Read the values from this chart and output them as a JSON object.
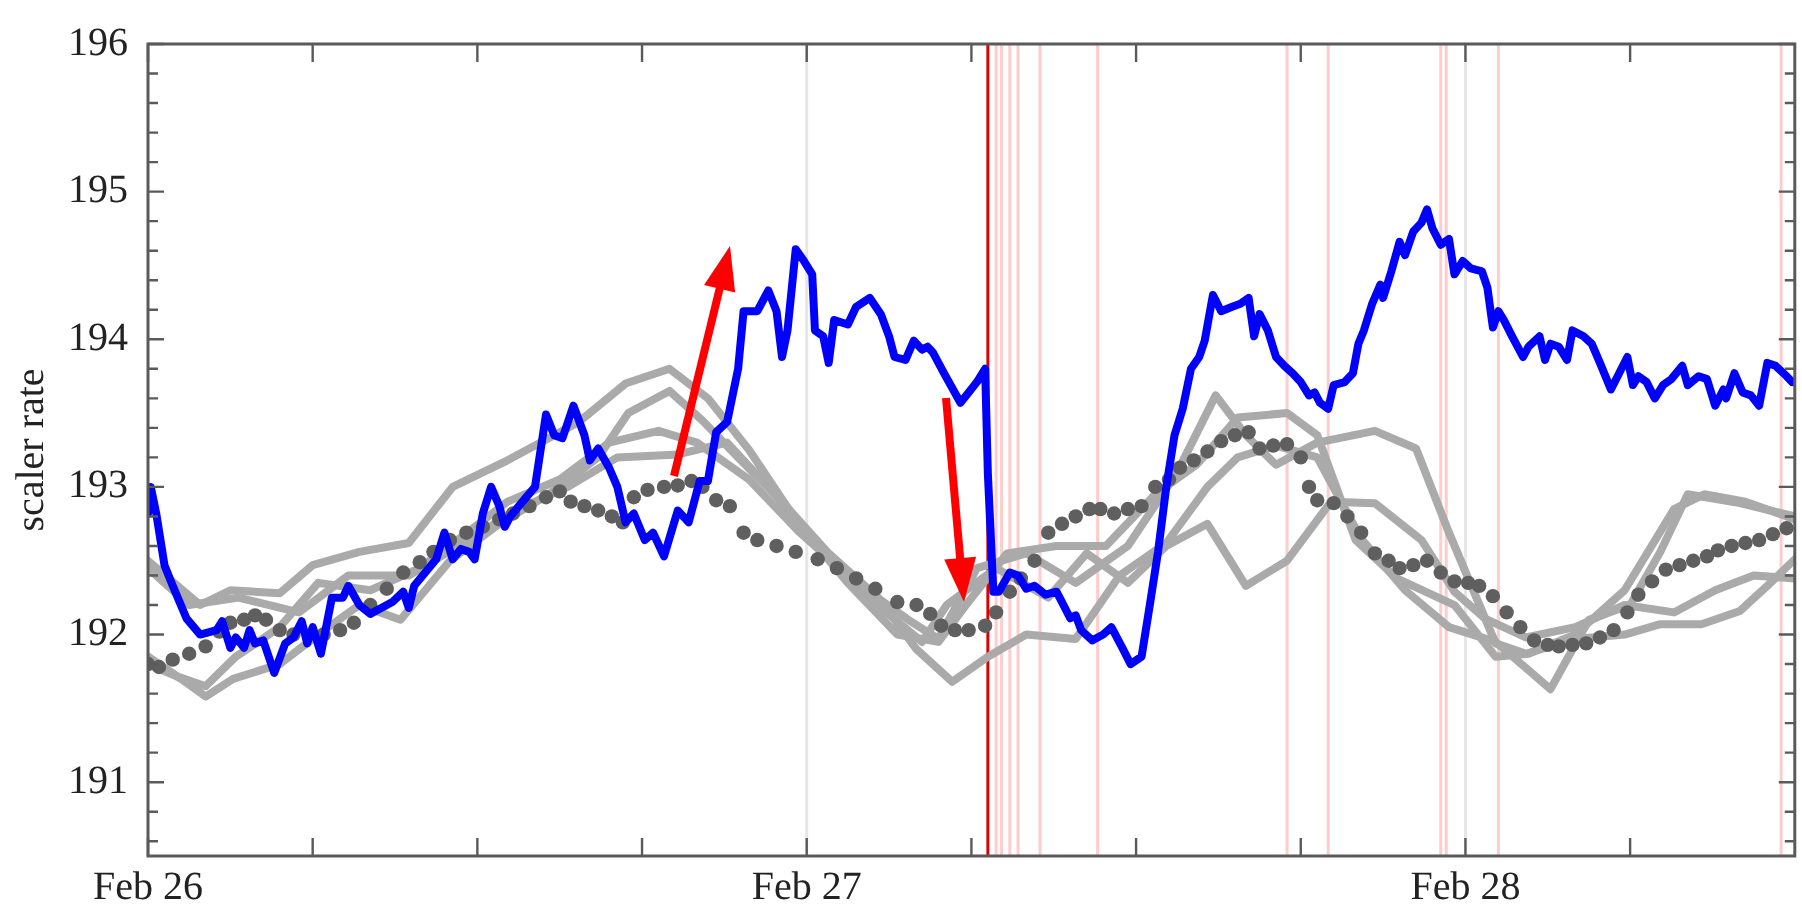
{
  "chart_data": {
    "type": "line",
    "ylabel": "scaler rate",
    "xlim": [
      "--02-26",
      "--02-28T12:00"
    ],
    "xticks": [
      {
        "value": "--02-26",
        "label": "Feb 26"
      },
      {
        "value": "--02-26T06:00",
        "label": null
      },
      {
        "value": "--02-26T12:00",
        "label": null
      },
      {
        "value": "--02-26T18:00",
        "label": null
      },
      {
        "value": "--02-27",
        "label": "Feb 27"
      },
      {
        "value": "--02-27T06:00",
        "label": null
      },
      {
        "value": "--02-27T12:00",
        "label": null
      },
      {
        "value": "--02-27T18:00",
        "label": null
      },
      {
        "value": "--02-28",
        "label": "Feb 28"
      },
      {
        "value": "--02-28T06:00",
        "label": null
      }
    ],
    "ylim": [
      190.5,
      196
    ],
    "yticks": [
      {
        "value": 190.6,
        "label": null
      },
      {
        "value": 190.8,
        "label": null
      },
      191,
      {
        "value": 191.2,
        "label": null
      },
      {
        "value": 191.4,
        "label": null
      },
      {
        "value": 191.6,
        "label": null
      },
      {
        "value": 191.8,
        "label": null
      },
      192,
      {
        "value": 192.2,
        "label": null
      },
      {
        "value": 192.4,
        "label": null
      },
      {
        "value": 192.6,
        "label": null
      },
      {
        "value": 192.8,
        "label": null
      },
      193,
      {
        "value": 193.2,
        "label": null
      },
      {
        "value": 193.4,
        "label": null
      },
      {
        "value": 193.6,
        "label": null
      },
      {
        "value": 193.8,
        "label": null
      },
      194,
      {
        "value": 194.2,
        "label": null
      },
      {
        "value": 194.4,
        "label": null
      },
      {
        "value": 194.6,
        "label": null
      },
      {
        "value": 194.8,
        "label": null
      },
      195,
      {
        "value": 195.2,
        "label": null
      },
      {
        "value": 195.4,
        "label": null
      },
      {
        "value": 195.6,
        "label": null
      },
      {
        "value": 195.8,
        "label": null
      },
      196
    ],
    "series": [
      {
        "color": "#0000ff",
        "x": [
          "--02-26T00:00",
          "--02-26T00:06",
          "--02-26T00:18",
          "--02-26T00:36",
          "--02-26T00:54",
          "--02-26T01:24",
          "--02-26T01:54",
          "--02-26T02:30",
          "--02-26T02:42",
          "--02-26T03:00",
          "--02-26T03:12",
          "--02-26T03:30",
          "--02-26T03:42",
          "--02-26T03:54",
          "--02-26T04:12",
          "--02-26T04:36",
          "--02-26T05:00",
          "--02-26T05:18",
          "--02-26T05:36",
          "--02-26T05:48",
          "--02-26T06:00",
          "--02-26T06:18",
          "--02-26T06:42",
          "--02-26T07:06",
          "--02-26T07:18",
          "--02-26T07:42",
          "--02-26T08:06",
          "--02-26T08:30",
          "--02-26T08:54",
          "--02-26T09:18",
          "--02-26T09:30",
          "--02-26T09:42",
          "--02-26T10:06",
          "--02-26T10:30",
          "--02-26T10:48",
          "--02-26T11:06",
          "--02-26T11:24",
          "--02-26T11:42",
          "--02-26T11:54",
          "--02-26T12:12",
          "--02-26T12:30",
          "--02-26T12:48",
          "--02-26T13:00",
          "--02-26T13:12",
          "--02-26T13:36",
          "--02-26T14:06",
          "--02-26T14:30",
          "--02-26T14:48",
          "--02-26T15:06",
          "--02-26T15:30",
          "--02-26T15:54",
          "--02-26T16:06",
          "--02-26T16:24",
          "--02-26T16:48",
          "--02-26T17:06",
          "--02-26T17:24",
          "--02-26T17:42",
          "--02-26T18:06",
          "--02-26T18:24",
          "--02-26T18:48",
          "--02-26T19:18",
          "--02-26T19:42",
          "--02-26T20:06",
          "--02-26T20:24",
          "--02-26T20:42",
          "--02-26T21:06",
          "--02-26T21:30",
          "--02-26T21:42",
          "--02-26T22:12",
          "--02-26T22:36",
          "--02-26T22:54",
          "--02-26T23:06",
          "--02-26T23:18",
          "--02-26T23:36",
          "--02-26T23:54",
          "--02-27T00:12",
          "--02-27T00:18",
          "--02-27T00:36",
          "--02-27T00:48",
          "--02-27T01:00",
          "--02-27T01:30",
          "--02-27T01:48",
          "--02-27T02:18",
          "--02-27T02:42",
          "--02-27T03:00",
          "--02-27T03:12",
          "--02-27T03:36",
          "--02-27T03:54",
          "--02-27T04:12",
          "--02-27T04:24",
          "--02-27T04:36",
          "--02-27T05:00",
          "--02-27T05:36",
          "--02-27T05:54",
          "--02-27T06:12",
          "--02-27T06:30",
          "--02-27T06:36",
          "--02-27T06:48",
          "--02-27T07:00",
          "--02-27T07:24",
          "--02-27T07:42",
          "--02-27T08:00",
          "--02-27T08:18",
          "--02-27T08:42",
          "--02-27T09:06",
          "--02-27T09:18",
          "--02-27T09:36",
          "--02-27T09:48",
          "--02-27T10:00",
          "--02-27T10:24",
          "--02-27T10:48",
          "--02-27T11:06",
          "--02-27T11:30",
          "--02-27T11:48",
          "--02-27T12:12",
          "--02-27T12:30",
          "--02-27T12:48",
          "--02-27T13:06",
          "--02-27T13:24",
          "--02-27T13:42",
          "--02-27T14:00",
          "--02-27T14:18",
          "--02-27T14:30",
          "--02-27T14:48",
          "--02-27T15:06",
          "--02-27T15:30",
          "--02-27T15:48",
          "--02-27T16:06",
          "--02-27T16:18",
          "--02-27T16:30",
          "--02-27T16:48",
          "--02-27T17:06",
          "--02-27T17:24",
          "--02-27T17:42",
          "--02-27T18:00",
          "--02-27T18:18",
          "--02-27T18:30",
          "--02-27T18:42",
          "--02-27T19:00",
          "--02-27T19:12",
          "--02-27T19:36",
          "--02-27T19:54",
          "--02-27T20:06",
          "--02-27T20:18",
          "--02-27T20:36",
          "--02-27T20:54",
          "--02-27T21:00",
          "--02-27T21:18",
          "--02-27T21:36",
          "--02-27T21:48",
          "--02-27T22:06",
          "--02-27T22:24",
          "--02-27T22:36",
          "--02-27T22:48",
          "--02-27T23:06",
          "--02-27T23:24",
          "--02-27T23:36",
          "--02-27T23:54",
          "--02-28T00:12",
          "--02-28T00:36",
          "--02-28T00:48",
          "--02-28T01:00",
          "--02-28T01:12",
          "--02-28T01:24",
          "--02-28T01:42",
          "--02-28T02:06",
          "--02-28T02:18",
          "--02-28T02:42",
          "--02-28T02:54",
          "--02-28T03:06",
          "--02-28T03:24",
          "--02-28T03:42",
          "--02-28T03:54",
          "--02-28T04:18",
          "--02-28T04:36",
          "--02-28T04:54",
          "--02-28T05:18",
          "--02-28T05:36",
          "--02-28T05:54",
          "--02-28T06:06",
          "--02-28T06:18",
          "--02-28T06:36",
          "--02-28T06:54",
          "--02-28T07:12",
          "--02-28T07:30",
          "--02-28T07:54",
          "--02-28T08:06",
          "--02-28T08:30",
          "--02-28T08:48",
          "--02-28T09:06",
          "--02-28T09:24",
          "--02-28T09:30",
          "--02-28T09:48",
          "--02-28T10:06",
          "--02-28T10:24",
          "--02-28T10:42",
          "--02-28T11:00",
          "--02-28T11:18",
          "--02-28T11:42",
          "--02-28T11:54"
        ],
        "values": [
          192.82,
          193.0,
          192.82,
          192.47,
          192.33,
          192.11,
          192.0,
          192.03,
          192.09,
          191.91,
          191.98,
          191.91,
          192.03,
          191.94,
          191.96,
          191.74,
          191.94,
          191.98,
          192.09,
          191.94,
          192.05,
          191.87,
          192.25,
          192.25,
          192.33,
          192.2,
          192.14,
          192.18,
          192.22,
          192.29,
          192.18,
          192.33,
          192.42,
          192.51,
          192.69,
          192.51,
          192.58,
          192.56,
          192.51,
          192.82,
          193.0,
          192.87,
          192.73,
          192.8,
          192.89,
          193.0,
          193.49,
          193.35,
          193.33,
          193.55,
          193.35,
          193.18,
          193.26,
          193.13,
          193.0,
          192.76,
          192.82,
          192.64,
          192.69,
          192.53,
          192.84,
          192.76,
          193.04,
          193.04,
          193.37,
          193.44,
          193.8,
          194.19,
          194.19,
          194.33,
          194.19,
          193.88,
          194.06,
          194.61,
          194.53,
          194.44,
          194.06,
          194.02,
          193.84,
          194.13,
          194.1,
          194.22,
          194.28,
          194.17,
          194.02,
          193.88,
          193.86,
          193.99,
          193.93,
          193.95,
          193.91,
          193.77,
          193.57,
          193.64,
          193.71,
          193.8,
          193.09,
          192.29,
          192.29,
          192.42,
          192.4,
          192.31,
          192.33,
          192.27,
          192.29,
          192.22,
          192.11,
          192.13,
          192.03,
          191.96,
          192.0,
          192.05,
          191.91,
          191.8,
          191.85,
          192.2,
          192.56,
          193.0,
          193.35,
          193.53,
          193.8,
          193.88,
          193.99,
          194.3,
          194.19,
          194.22,
          194.24,
          194.28,
          194.02,
          194.17,
          194.06,
          193.88,
          193.82,
          193.77,
          193.71,
          193.62,
          193.64,
          193.57,
          193.53,
          193.69,
          193.71,
          193.77,
          193.97,
          194.06,
          194.24,
          194.37,
          194.28,
          194.46,
          194.66,
          194.57,
          194.73,
          194.79,
          194.88,
          194.75,
          194.64,
          194.68,
          194.44,
          194.53,
          194.48,
          194.46,
          194.35,
          194.08,
          194.19,
          194.13,
          194.02,
          193.88,
          193.95,
          194.02,
          193.86,
          193.97,
          193.95,
          193.86,
          194.06,
          194.02,
          193.97,
          193.84,
          193.66,
          193.77,
          193.88,
          193.69,
          193.75,
          193.71,
          193.6,
          193.69,
          193.73,
          193.82,
          193.69,
          193.75,
          193.73,
          193.55,
          193.66,
          193.6,
          193.77,
          193.64,
          193.62,
          193.55,
          193.84,
          193.82,
          193.75,
          193.71
        ]
      },
      {
        "type": "scatter",
        "marker": "circle",
        "color": "#5f5f5f",
        "x": [
          "--02-26T00:00",
          "--02-26T00:24",
          "--02-26T00:54",
          "--02-26T01:30",
          "--02-26T02:06",
          "--02-26T02:36",
          "--02-26T03:00",
          "--02-26T03:30",
          "--02-26T03:54",
          "--02-26T04:18",
          "--02-26T04:48",
          "--02-26T05:18",
          "--02-26T05:54",
          "--02-26T06:24",
          "--02-26T07:00",
          "--02-26T07:30",
          "--02-26T08:06",
          "--02-26T08:42",
          "--02-26T09:18",
          "--02-26T09:54",
          "--02-26T10:24",
          "--02-26T11:00",
          "--02-26T11:36",
          "--02-26T12:12",
          "--02-26T12:48",
          "--02-26T13:18",
          "--02-26T13:54",
          "--02-26T14:30",
          "--02-26T15:00",
          "--02-26T15:24",
          "--02-26T15:54",
          "--02-26T16:24",
          "--02-26T16:54",
          "--02-26T17:18",
          "--02-26T17:42",
          "--02-26T18:12",
          "--02-26T18:48",
          "--02-26T19:18",
          "--02-26T19:48",
          "--02-26T20:12",
          "--02-26T20:42",
          "--02-26T21:12",
          "--02-26T21:42",
          "--02-26T22:12",
          "--02-26T22:54",
          "--02-26T23:36",
          "--02-27T00:24",
          "--02-27T01:06",
          "--02-27T01:48",
          "--02-27T02:30",
          "--02-27T03:18",
          "--02-27T04:00",
          "--02-27T04:30",
          "--02-27T04:54",
          "--02-27T05:24",
          "--02-27T05:54",
          "--02-27T06:30",
          "--02-27T06:54",
          "--02-27T07:24",
          "--02-27T07:48",
          "--02-27T08:18",
          "--02-27T08:48",
          "--02-27T09:18",
          "--02-27T09:48",
          "--02-27T10:18",
          "--02-27T10:42",
          "--02-27T11:12",
          "--02-27T11:42",
          "--02-27T12:12",
          "--02-27T12:42",
          "--02-27T13:12",
          "--02-27T13:36",
          "--02-27T14:06",
          "--02-27T14:36",
          "--02-27T15:06",
          "--02-27T15:36",
          "--02-27T16:06",
          "--02-27T16:30",
          "--02-27T17:00",
          "--02-27T17:30",
          "--02-27T18:00",
          "--02-27T18:18",
          "--02-27T18:36",
          "--02-27T19:12",
          "--02-27T19:42",
          "--02-27T20:12",
          "--02-27T20:42",
          "--02-27T21:12",
          "--02-27T21:36",
          "--02-27T22:06",
          "--02-27T22:36",
          "--02-27T23:06",
          "--02-27T23:36",
          "--02-28T00:06",
          "--02-28T00:30",
          "--02-28T01:00",
          "--02-28T01:30",
          "--02-28T02:00",
          "--02-28T02:30",
          "--02-28T03:00",
          "--02-28T03:24",
          "--02-28T03:54",
          "--02-28T04:24",
          "--02-28T04:54",
          "--02-28T05:24",
          "--02-28T05:54",
          "--02-28T06:18",
          "--02-28T06:48",
          "--02-28T07:18",
          "--02-28T07:48",
          "--02-28T08:18",
          "--02-28T08:48",
          "--02-28T09:12",
          "--02-28T09:42",
          "--02-28T10:12",
          "--02-28T10:42",
          "--02-28T11:12",
          "--02-28T11:42"
        ],
        "values": [
          191.8,
          191.78,
          191.83,
          191.87,
          191.92,
          192.02,
          192.08,
          192.1,
          192.13,
          192.1,
          192.03,
          192.0,
          null,
          192.0,
          192.03,
          192.08,
          192.2,
          192.31,
          192.42,
          192.49,
          192.56,
          192.64,
          192.69,
          192.73,
          192.78,
          192.82,
          192.87,
          192.93,
          192.97,
          192.9,
          192.87,
          192.84,
          192.8,
          192.76,
          192.93,
          192.98,
          193.0,
          193.01,
          193.04,
          193.0,
          192.91,
          192.87,
          192.69,
          192.64,
          192.6,
          192.56,
          192.51,
          192.45,
          192.38,
          192.31,
          192.22,
          192.2,
          192.14,
          192.06,
          192.03,
          192.03,
          192.06,
          192.15,
          192.29,
          192.38,
          192.5,
          192.69,
          192.75,
          192.8,
          192.85,
          192.85,
          192.82,
          192.85,
          192.87,
          193.0,
          193.05,
          193.13,
          193.18,
          193.24,
          193.31,
          193.35,
          193.37,
          193.26,
          193.28,
          193.29,
          193.2,
          193.0,
          192.91,
          192.89,
          192.8,
          192.69,
          192.55,
          192.5,
          192.45,
          192.47,
          192.5,
          192.42,
          192.36,
          192.35,
          192.33,
          192.26,
          192.15,
          192.05,
          191.96,
          191.93,
          191.92,
          191.93,
          191.94,
          191.98,
          192.03,
          192.15,
          192.27,
          192.36,
          192.44,
          192.47,
          192.5,
          192.53,
          192.57,
          192.6,
          192.62,
          192.64,
          192.68,
          192.72
        ]
      },
      {
        "color": "#aaaaaa",
        "x": [
          "--02-26T00:00",
          "--02-26T01:54",
          "--02-26T03:00",
          "--02-26T04:48",
          "--02-26T06:00",
          "--02-26T07:42",
          "--02-26T09:30",
          "--02-26T11:06",
          "--02-26T13:06",
          "--02-26T15:42",
          "--02-26T17:24",
          "--02-26T19:00",
          "--02-26T20:24",
          "--02-26T21:54",
          "--02-26T23:42",
          "--02-27T01:30",
          "--02-27T03:18",
          "--02-27T04:48",
          "--02-27T05:48",
          "--02-27T07:18",
          "--02-27T09:06",
          "--02-27T10:54",
          "--02-27T12:42",
          "--02-27T14:12",
          "--02-27T15:42",
          "--02-27T17:30",
          "--02-27T18:36",
          "--02-27T20:00",
          "--02-27T21:30",
          "--02-27T23:36",
          "--02-28T01:06",
          "--02-28T02:18",
          "--02-28T04:00",
          "--02-28T05:48",
          "--02-28T07:36",
          "--02-28T08:42",
          "--02-28T10:12",
          "--02-28T12:00"
        ],
        "values": [
          192.5,
          192.2,
          192.3,
          192.28,
          192.47,
          192.56,
          192.62,
          193.0,
          193.18,
          193.44,
          193.7,
          193.8,
          193.6,
          193.25,
          192.75,
          192.35,
          192.0,
          191.95,
          192.2,
          192.55,
          192.6,
          192.6,
          192.95,
          193.15,
          193.47,
          193.5,
          193.35,
          192.64,
          192.38,
          192.2,
          191.85,
          191.87,
          192.0,
          192.3,
          192.85,
          192.95,
          192.9,
          192.78
        ]
      },
      {
        "color": "#aaaaaa",
        "x": [
          "--02-26T00:00",
          "--02-26T01:12",
          "--02-26T02:06",
          "--02-26T03:06",
          "--02-26T04:48",
          "--02-26T06:12",
          "--02-26T07:42",
          "--02-26T09:12",
          "--02-26T11:00",
          "--02-26T12:48",
          "--02-26T14:36",
          "--02-26T16:24",
          "--02-26T17:30",
          "--02-26T19:00",
          "--02-26T20:12",
          "--02-26T21:30",
          "--02-26T23:06",
          "--02-27T00:48",
          "--02-27T02:36",
          "--02-27T04:00",
          "--02-27T05:18",
          "--02-27T06:36",
          "--02-27T08:00",
          "--02-27T09:48",
          "--02-27T11:24",
          "--02-27T13:06",
          "--02-27T14:36",
          "--02-27T15:42",
          "--02-27T17:06",
          "--02-27T18:36",
          "--02-27T20:12",
          "--02-27T21:48",
          "--02-27T23:24",
          "--02-28T01:06",
          "--02-28T03:06",
          "--02-28T04:30",
          "--02-28T06:00",
          "--02-28T07:06",
          "--02-28T08:06",
          "--02-28T10:00",
          "--02-28T12:00"
        ],
        "values": [
          191.85,
          191.7,
          191.58,
          191.7,
          191.8,
          192.0,
          192.2,
          192.1,
          192.5,
          192.75,
          192.95,
          193.2,
          193.5,
          193.65,
          193.45,
          193.2,
          192.9,
          192.55,
          192.25,
          191.9,
          191.68,
          191.85,
          192.0,
          191.97,
          192.4,
          192.62,
          193.0,
          193.2,
          193.28,
          193.2,
          192.65,
          192.3,
          192.05,
          191.95,
          191.63,
          192.1,
          192.2,
          192.56,
          192.95,
          192.89,
          192.8
        ]
      },
      {
        "color": "#aaaaaa",
        "x": [
          "--02-26T00:00",
          "--02-26T01:30",
          "--02-26T03:18",
          "--02-26T05:30",
          "--02-26T07:18",
          "--02-26T09:30",
          "--02-26T11:18",
          "--02-26T13:30",
          "--02-26T15:18",
          "--02-26T17:06",
          "--02-26T19:18",
          "--02-26T21:06",
          "--02-26T22:36",
          "--02-27T00:24",
          "--02-27T02:12",
          "--02-27T03:42",
          "--02-27T04:48",
          "--02-27T06:12",
          "--02-27T08:00",
          "--02-27T09:48",
          "--02-27T11:42",
          "--02-27T13:30",
          "--02-27T14:54",
          "--02-27T16:00",
          "--02-27T17:06",
          "--02-27T18:36",
          "--02-27T20:42",
          "--02-27T22:12",
          "--02-27T23:24",
          "--02-28T01:06",
          "--02-28T02:12",
          "--02-28T04:00",
          "--02-28T05:48",
          "--02-28T07:06",
          "--02-28T08:36",
          "--02-28T10:00",
          "--02-28T11:00",
          "--02-28T12:00"
        ],
        "values": [
          192.45,
          192.2,
          192.25,
          192.15,
          192.4,
          192.4,
          192.6,
          192.85,
          193.0,
          193.2,
          193.22,
          193.3,
          193.0,
          192.6,
          192.3,
          192.1,
          191.97,
          192.45,
          192.55,
          192.35,
          192.6,
          193.1,
          193.62,
          193.35,
          193.15,
          193.3,
          193.38,
          193.26,
          192.69,
          191.94,
          191.87,
          191.97,
          192.0,
          192.07,
          192.07,
          192.16,
          192.33,
          192.51
        ]
      },
      {
        "color": "#aaaaaa",
        "x": [
          "--02-26T00:00",
          "--02-26T01:00",
          "--02-26T02:06",
          "--02-26T03:12",
          "--02-26T04:48",
          "--02-26T06:12",
          "--02-26T08:06",
          "--02-26T09:54",
          "--02-26T11:42",
          "--02-26T13:06",
          "--02-26T15:00",
          "--02-26T16:48",
          "--02-26T18:36",
          "--02-26T20:00",
          "--02-26T21:54",
          "--02-26T23:42",
          "--02-27T01:30",
          "--02-27T02:54",
          "--02-27T04:12",
          "--02-27T05:06",
          "--02-27T06:54",
          "--02-27T08:48",
          "--02-27T10:12",
          "--02-27T11:42",
          "--02-27T13:06",
          "--02-27T14:36",
          "--02-27T16:00",
          "--02-27T17:30",
          "--02-27T19:06",
          "--02-27T20:42",
          "--02-27T22:24",
          "--02-27T23:36",
          "--02-28T00:42",
          "--02-28T02:12",
          "--02-28T04:00",
          "--02-28T05:48",
          "--02-28T07:36",
          "--02-28T09:06",
          "--02-28T10:30",
          "--02-28T12:00"
        ],
        "values": [
          191.8,
          191.72,
          191.65,
          191.85,
          192.05,
          192.35,
          192.3,
          192.45,
          192.7,
          192.9,
          193.05,
          193.3,
          193.38,
          193.3,
          193.05,
          192.7,
          192.4,
          192.15,
          191.95,
          192.2,
          192.45,
          192.25,
          192.55,
          192.35,
          192.6,
          192.75,
          192.33,
          192.5,
          192.9,
          192.89,
          192.64,
          192.29,
          192.11,
          191.98,
          192.05,
          192.2,
          192.15,
          192.3,
          192.4,
          192.38
        ]
      }
    ],
    "ref_lines": [
      {
        "axis": "x",
        "value": "--02-27",
        "color": "#e6e6e6"
      },
      {
        "axis": "x",
        "value": "--02-28",
        "color": "#e6e6e6"
      },
      {
        "axis": "x",
        "value": "--02-27T06:54",
        "color": "#ffcccc"
      },
      {
        "axis": "x",
        "value": "--02-27T07:06",
        "color": "#ffcccc"
      },
      {
        "axis": "x",
        "value": "--02-27T07:24",
        "color": "#ffcccc"
      },
      {
        "axis": "x",
        "value": "--02-27T07:42",
        "color": "#ffcccc"
      },
      {
        "axis": "x",
        "value": "--02-27T08:30",
        "color": "#ffcccc"
      },
      {
        "axis": "x",
        "value": "--02-27T10:36",
        "color": "#ffcccc"
      },
      {
        "axis": "x",
        "value": "--02-27T17:30",
        "color": "#ffcccc"
      },
      {
        "axis": "x",
        "value": "--02-27T19:00",
        "color": "#ffcccc"
      },
      {
        "axis": "x",
        "value": "--02-27T23:06",
        "color": "#ffcccc"
      },
      {
        "axis": "x",
        "value": "--02-27T23:18",
        "color": "#ffcccc"
      },
      {
        "axis": "x",
        "value": "--02-28T01:12",
        "color": "#ffcccc"
      },
      {
        "axis": "x",
        "value": "--02-28T11:30",
        "color": "#ffcccc"
      },
      {
        "axis": "x",
        "value": "--02-27T06:36",
        "color": "#dd0000"
      }
    ]
  }
}
